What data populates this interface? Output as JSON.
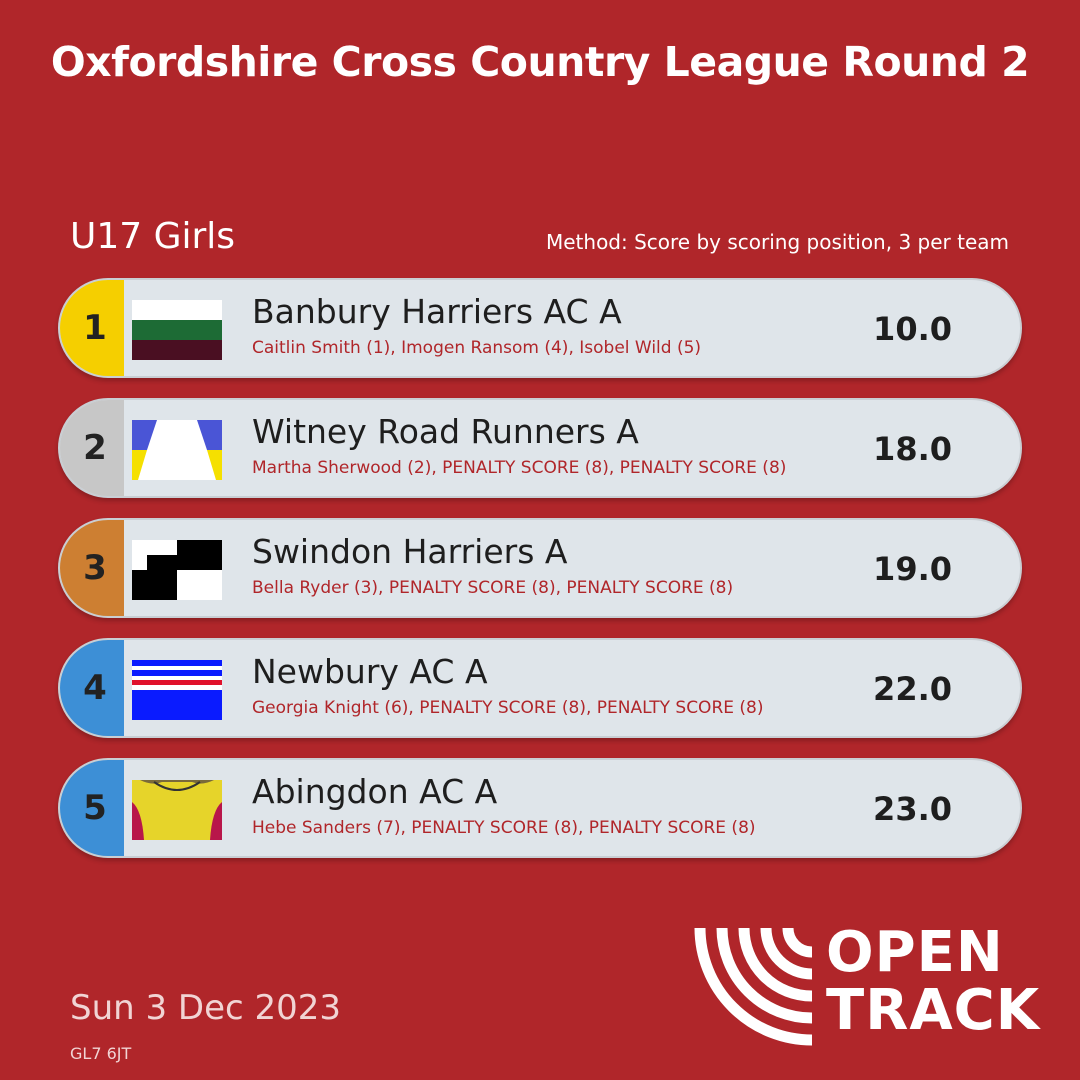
{
  "header": {
    "title": "Oxfordshire Cross Country League Round 2"
  },
  "race": {
    "category": "U17 Girls",
    "method": "Method: Score by scoring position, 3 per team"
  },
  "results": [
    {
      "position": "1",
      "team": "Banbury Harriers AC A",
      "members": "Caitlin Smith (1), Imogen Ransom (4), Isobel Wild (5)",
      "score": "10.0",
      "badge_color": "#f5cf00",
      "flag": "banbury-flag-icon"
    },
    {
      "position": "2",
      "team": "Witney Road Runners A",
      "members": "Martha Sherwood (2), PENALTY SCORE (8), PENALTY SCORE (8)",
      "score": "18.0",
      "badge_color": "#c7c7c7",
      "flag": "witney-flag-icon"
    },
    {
      "position": "3",
      "team": "Swindon Harriers A",
      "members": "Bella Ryder (3), PENALTY SCORE (8), PENALTY SCORE (8)",
      "score": "19.0",
      "badge_color": "#cd7f32",
      "flag": "swindon-flag-icon"
    },
    {
      "position": "4",
      "team": "Newbury AC A",
      "members": "Georgia Knight (6), PENALTY SCORE (8), PENALTY SCORE (8)",
      "score": "22.0",
      "badge_color": "#3d8fd6",
      "flag": "newbury-flag-icon"
    },
    {
      "position": "5",
      "team": "Abingdon AC A",
      "members": "Hebe Sanders (7), PENALTY SCORE (8), PENALTY SCORE (8)",
      "score": "23.0",
      "badge_color": "#3d8fd6",
      "flag": "abingdon-vest-icon"
    }
  ],
  "footer": {
    "date": "Sun 3 Dec 2023",
    "postcode": "GL7 6JT",
    "logo_line1": "OPEN",
    "logo_line2": "TRACK"
  },
  "colors": {
    "background": "#b0262a",
    "row_background": "#dfe5ea",
    "accent_text": "#b0262a"
  }
}
